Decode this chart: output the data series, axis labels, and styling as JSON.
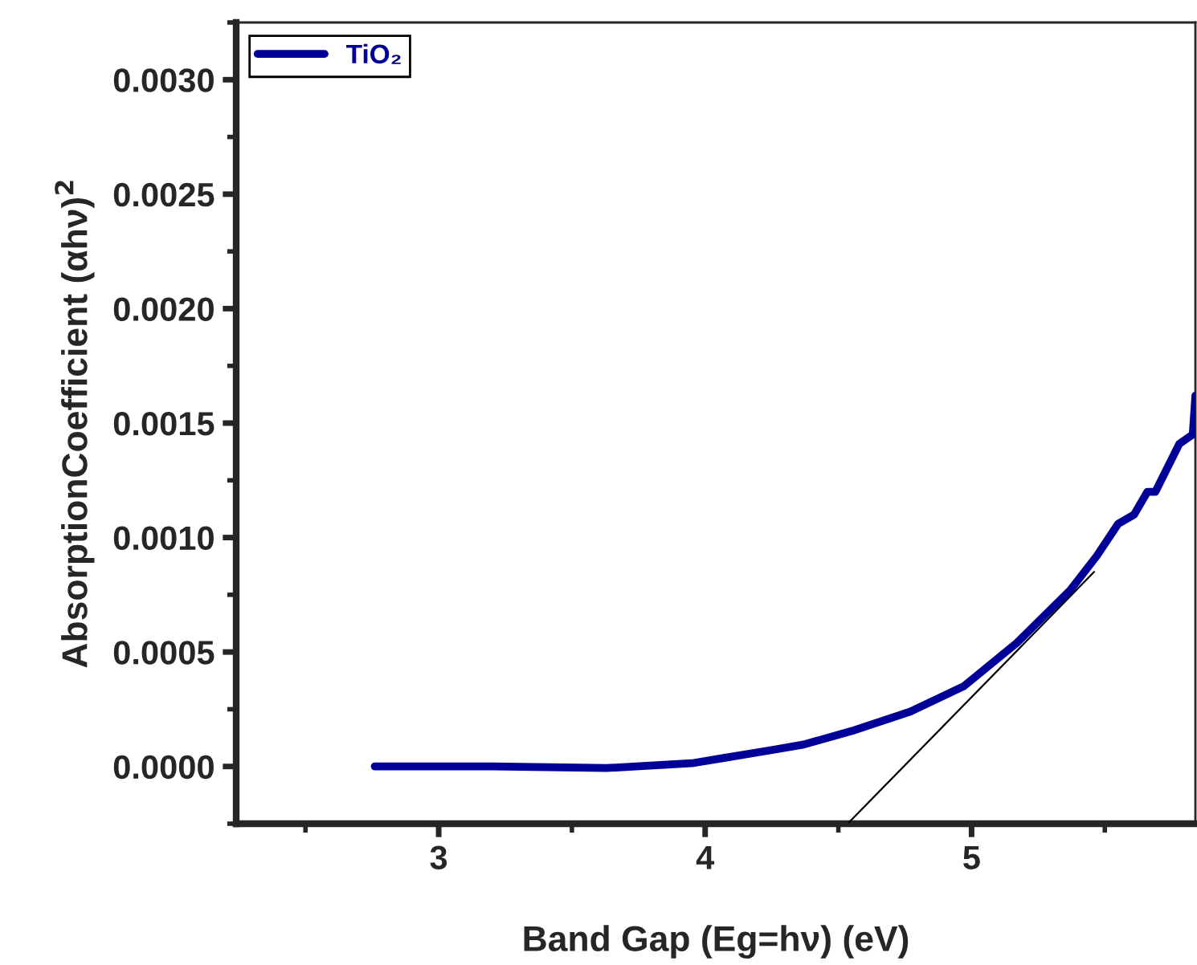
{
  "chart_data": {
    "type": "line",
    "xlabel": "Band Gap (Eg=hν) (eV)",
    "ylabel": "AbsorptionCoefficient (αhν)$^{2}$",
    "xlim": [
      2.24,
      5.84
    ],
    "xticks": [
      3,
      4,
      5
    ],
    "ylim": [
      -0.00025,
      0.00325
    ],
    "yticks": [
      {
        "value": 0,
        "label": "0.0000"
      },
      {
        "value": 0.0005,
        "label": "0.0005"
      },
      {
        "value": 0.001,
        "label": "0.0010"
      },
      {
        "value": 0.0015,
        "label": "0.0015"
      },
      {
        "value": 0.002,
        "label": "0.0020"
      },
      {
        "value": 0.0025,
        "label": "0.0025"
      },
      {
        "value": 0.003,
        "label": "0.0030"
      }
    ],
    "grid": false,
    "legend": "top left",
    "series": [
      {
        "name": "TiO₂",
        "color": "#000099",
        "x": [
          2.76,
          3.2,
          3.63,
          3.95,
          4.07,
          4.25,
          4.37,
          4.55,
          4.77,
          4.97,
          5.17,
          5.37,
          5.47,
          5.55,
          5.61,
          5.66,
          5.69,
          5.78,
          5.83,
          5.84
        ],
        "values": [
          0.0,
          0.0,
          -7e-06,
          1.4e-05,
          3.7e-05,
          7.2e-05,
          9.6e-05,
          0.000155,
          0.00024,
          0.00035,
          0.00054,
          0.00077,
          0.00092,
          0.00106,
          0.0011,
          0.0012,
          0.0012,
          0.00141,
          0.00145,
          0.00162
        ]
      },
      {
        "type": "line",
        "color": "#000000",
        "x": [
          4.54,
          5.46
        ],
        "values": [
          -0.000244,
          0.00085
        ]
      }
    ]
  }
}
